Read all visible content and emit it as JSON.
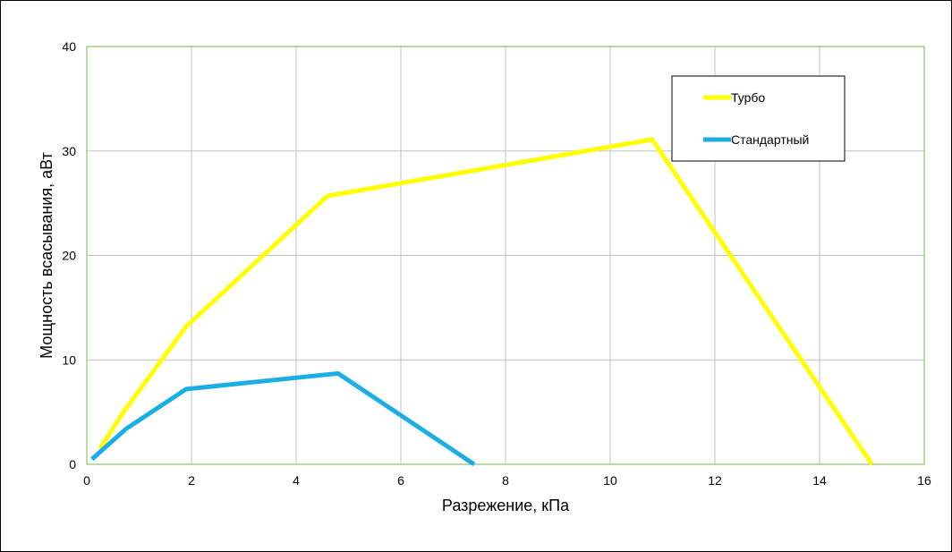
{
  "chart_data": {
    "type": "line",
    "title": "",
    "xlabel": "Разрежение, кПа",
    "ylabel": "Мощность всасывания, аВт",
    "xlim": [
      0,
      16
    ],
    "ylim": [
      0,
      40
    ],
    "xticks": [
      "0",
      "2",
      "4",
      "6",
      "8",
      "10",
      "12",
      "14",
      "16"
    ],
    "yticks": [
      "0",
      "10",
      "20",
      "30",
      "40"
    ],
    "grid": true,
    "legend_position": "top-right",
    "plot_border_color": "#7ab648",
    "grid_color": "#c0c0c0",
    "series": [
      {
        "name": "Турбо",
        "color": "#ffff00",
        "x": [
          0.25,
          0.7,
          1.9,
          4.6,
          10.8,
          15.0
        ],
        "y": [
          1.5,
          5.0,
          13.2,
          25.7,
          31.1,
          0
        ]
      },
      {
        "name": "Стандартный",
        "color": "#1aaee5",
        "x": [
          0.1,
          0.75,
          1.9,
          4.8,
          7.4
        ],
        "y": [
          0.5,
          3.4,
          7.2,
          8.7,
          0
        ]
      }
    ]
  }
}
